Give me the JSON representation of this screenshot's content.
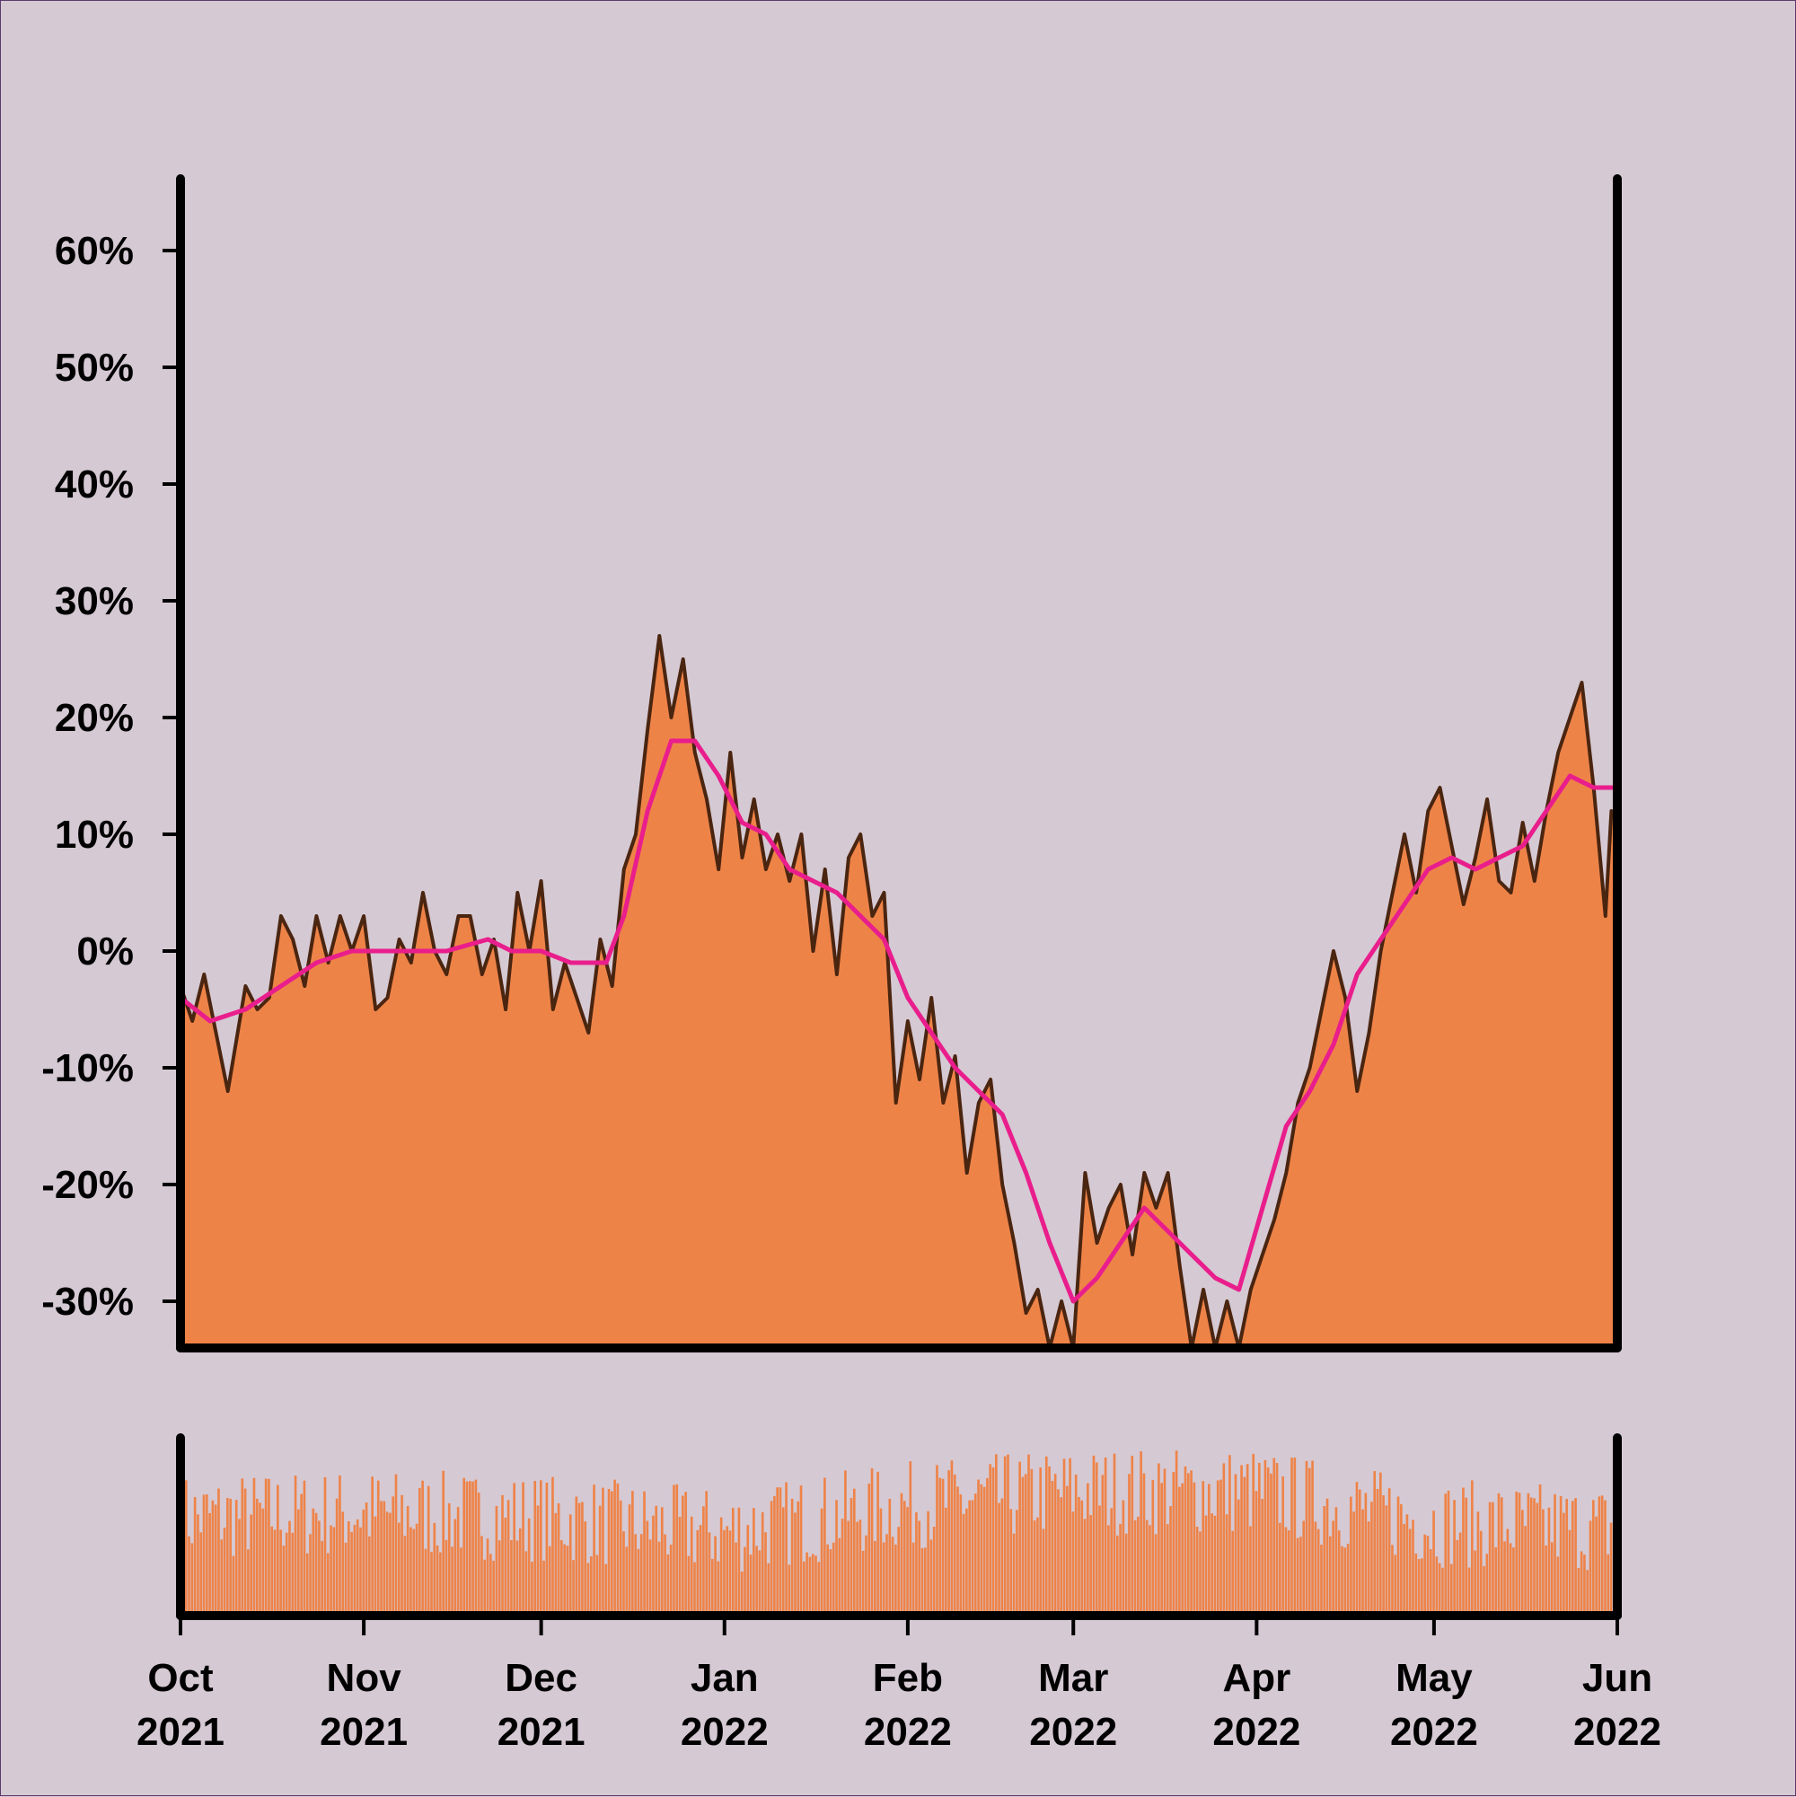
{
  "chart_data": [
    {
      "type": "area",
      "title": "",
      "xlabel": "",
      "ylabel": "",
      "x_domain": [
        "2021-10-01",
        "2022-06-01"
      ],
      "ylim": [
        -0.34,
        0.66
      ],
      "yticks": [
        {
          "value": 0.6,
          "label": "60%"
        },
        {
          "value": 0.5,
          "label": "50%"
        },
        {
          "value": 0.4,
          "label": "40%"
        },
        {
          "value": 0.3,
          "label": "30%"
        },
        {
          "value": 0.2,
          "label": "20%"
        },
        {
          "value": 0.1,
          "label": "10%"
        },
        {
          "value": 0.0,
          "label": "0%"
        },
        {
          "value": -0.1,
          "label": "-10%"
        },
        {
          "value": -0.2,
          "label": "-20%"
        },
        {
          "value": -0.3,
          "label": "-30%"
        }
      ],
      "grid": false,
      "series": [
        {
          "kind": "area",
          "fill_color": "#ee8348",
          "line_color": "#4a2510",
          "points": [
            [
              "2021-10-01",
              -0.03
            ],
            [
              "2021-10-03",
              -0.06
            ],
            [
              "2021-10-05",
              -0.02
            ],
            [
              "2021-10-07",
              -0.07
            ],
            [
              "2021-10-09",
              -0.12
            ],
            [
              "2021-10-12",
              -0.03
            ],
            [
              "2021-10-14",
              -0.05
            ],
            [
              "2021-10-16",
              -0.04
            ],
            [
              "2021-10-18",
              0.03
            ],
            [
              "2021-10-20",
              0.01
            ],
            [
              "2021-10-22",
              -0.03
            ],
            [
              "2021-10-24",
              0.03
            ],
            [
              "2021-10-26",
              -0.01
            ],
            [
              "2021-10-28",
              0.03
            ],
            [
              "2021-10-30",
              0.0
            ],
            [
              "2021-11-01",
              0.03
            ],
            [
              "2021-11-03",
              -0.05
            ],
            [
              "2021-11-05",
              -0.04
            ],
            [
              "2021-11-07",
              0.01
            ],
            [
              "2021-11-09",
              -0.01
            ],
            [
              "2021-11-11",
              0.05
            ],
            [
              "2021-11-13",
              0.0
            ],
            [
              "2021-11-15",
              -0.02
            ],
            [
              "2021-11-17",
              0.03
            ],
            [
              "2021-11-19",
              0.03
            ],
            [
              "2021-11-21",
              -0.02
            ],
            [
              "2021-11-23",
              0.01
            ],
            [
              "2021-11-25",
              -0.05
            ],
            [
              "2021-11-27",
              0.05
            ],
            [
              "2021-11-29",
              0.0
            ],
            [
              "2021-12-01",
              0.06
            ],
            [
              "2021-12-03",
              -0.05
            ],
            [
              "2021-12-05",
              -0.01
            ],
            [
              "2021-12-07",
              -0.04
            ],
            [
              "2021-12-09",
              -0.07
            ],
            [
              "2021-12-11",
              0.01
            ],
            [
              "2021-12-13",
              -0.03
            ],
            [
              "2021-12-15",
              0.07
            ],
            [
              "2021-12-17",
              0.1
            ],
            [
              "2021-12-19",
              0.19
            ],
            [
              "2021-12-21",
              0.27
            ],
            [
              "2021-12-23",
              0.2
            ],
            [
              "2021-12-25",
              0.25
            ],
            [
              "2021-12-27",
              0.17
            ],
            [
              "2021-12-29",
              0.13
            ],
            [
              "2021-12-31",
              0.07
            ],
            [
              "2022-01-02",
              0.17
            ],
            [
              "2022-01-04",
              0.08
            ],
            [
              "2022-01-06",
              0.13
            ],
            [
              "2022-01-08",
              0.07
            ],
            [
              "2022-01-10",
              0.1
            ],
            [
              "2022-01-12",
              0.06
            ],
            [
              "2022-01-14",
              0.1
            ],
            [
              "2022-01-16",
              0.0
            ],
            [
              "2022-01-18",
              0.07
            ],
            [
              "2022-01-20",
              -0.02
            ],
            [
              "2022-01-22",
              0.08
            ],
            [
              "2022-01-24",
              0.1
            ],
            [
              "2022-01-26",
              0.03
            ],
            [
              "2022-01-28",
              0.05
            ],
            [
              "2022-01-30",
              -0.13
            ],
            [
              "2022-02-01",
              -0.06
            ],
            [
              "2022-02-03",
              -0.11
            ],
            [
              "2022-02-05",
              -0.04
            ],
            [
              "2022-02-07",
              -0.13
            ],
            [
              "2022-02-09",
              -0.09
            ],
            [
              "2022-02-11",
              -0.19
            ],
            [
              "2022-02-13",
              -0.13
            ],
            [
              "2022-02-15",
              -0.11
            ],
            [
              "2022-02-17",
              -0.2
            ],
            [
              "2022-02-19",
              -0.25
            ],
            [
              "2022-02-21",
              -0.31
            ],
            [
              "2022-02-23",
              -0.29
            ],
            [
              "2022-02-25",
              -0.34
            ],
            [
              "2022-02-27",
              -0.3
            ],
            [
              "2022-03-01",
              -0.34
            ],
            [
              "2022-03-03",
              -0.19
            ],
            [
              "2022-03-05",
              -0.25
            ],
            [
              "2022-03-07",
              -0.22
            ],
            [
              "2022-03-09",
              -0.2
            ],
            [
              "2022-03-11",
              -0.26
            ],
            [
              "2022-03-13",
              -0.19
            ],
            [
              "2022-03-15",
              -0.22
            ],
            [
              "2022-03-17",
              -0.19
            ],
            [
              "2022-03-19",
              -0.27
            ],
            [
              "2022-03-21",
              -0.34
            ],
            [
              "2022-03-23",
              -0.29
            ],
            [
              "2022-03-25",
              -0.34
            ],
            [
              "2022-03-27",
              -0.3
            ],
            [
              "2022-03-29",
              -0.34
            ],
            [
              "2022-03-31",
              -0.29
            ],
            [
              "2022-04-02",
              -0.26
            ],
            [
              "2022-04-04",
              -0.23
            ],
            [
              "2022-04-06",
              -0.19
            ],
            [
              "2022-04-08",
              -0.13
            ],
            [
              "2022-04-10",
              -0.1
            ],
            [
              "2022-04-12",
              -0.05
            ],
            [
              "2022-04-14",
              0.0
            ],
            [
              "2022-04-16",
              -0.04
            ],
            [
              "2022-04-18",
              -0.12
            ],
            [
              "2022-04-20",
              -0.07
            ],
            [
              "2022-04-22",
              0.0
            ],
            [
              "2022-04-24",
              0.05
            ],
            [
              "2022-04-26",
              0.1
            ],
            [
              "2022-04-28",
              0.05
            ],
            [
              "2022-04-30",
              0.12
            ],
            [
              "2022-05-02",
              0.14
            ],
            [
              "2022-05-04",
              0.09
            ],
            [
              "2022-05-06",
              0.04
            ],
            [
              "2022-05-08",
              0.08
            ],
            [
              "2022-05-10",
              0.13
            ],
            [
              "2022-05-12",
              0.06
            ],
            [
              "2022-05-14",
              0.05
            ],
            [
              "2022-05-16",
              0.11
            ],
            [
              "2022-05-18",
              0.06
            ],
            [
              "2022-05-20",
              0.12
            ],
            [
              "2022-05-22",
              0.17
            ],
            [
              "2022-05-24",
              0.2
            ],
            [
              "2022-05-26",
              0.23
            ],
            [
              "2022-05-28",
              0.14
            ],
            [
              "2022-05-30",
              0.03
            ],
            [
              "2022-05-31",
              0.12
            ],
            [
              "2022-06-01",
              0.11
            ]
          ]
        },
        {
          "kind": "line",
          "line_color": "#e91e8c",
          "points": [
            [
              "2021-10-01",
              -0.04
            ],
            [
              "2021-10-06",
              -0.06
            ],
            [
              "2021-10-12",
              -0.05
            ],
            [
              "2021-10-18",
              -0.03
            ],
            [
              "2021-10-24",
              -0.01
            ],
            [
              "2021-10-30",
              0.0
            ],
            [
              "2021-11-05",
              0.0
            ],
            [
              "2021-11-15",
              0.0
            ],
            [
              "2021-11-22",
              0.01
            ],
            [
              "2021-11-26",
              0.0
            ],
            [
              "2021-12-01",
              0.0
            ],
            [
              "2021-12-06",
              -0.01
            ],
            [
              "2021-12-12",
              -0.01
            ],
            [
              "2021-12-15",
              0.03
            ],
            [
              "2021-12-19",
              0.12
            ],
            [
              "2021-12-23",
              0.18
            ],
            [
              "2021-12-27",
              0.18
            ],
            [
              "2021-12-31",
              0.15
            ],
            [
              "2022-01-04",
              0.11
            ],
            [
              "2022-01-08",
              0.1
            ],
            [
              "2022-01-12",
              0.07
            ],
            [
              "2022-01-16",
              0.06
            ],
            [
              "2022-01-20",
              0.05
            ],
            [
              "2022-01-24",
              0.03
            ],
            [
              "2022-01-28",
              0.01
            ],
            [
              "2022-02-01",
              -0.04
            ],
            [
              "2022-02-05",
              -0.07
            ],
            [
              "2022-02-09",
              -0.1
            ],
            [
              "2022-02-13",
              -0.12
            ],
            [
              "2022-02-17",
              -0.14
            ],
            [
              "2022-02-21",
              -0.19
            ],
            [
              "2022-02-25",
              -0.25
            ],
            [
              "2022-03-01",
              -0.3
            ],
            [
              "2022-03-05",
              -0.28
            ],
            [
              "2022-03-09",
              -0.25
            ],
            [
              "2022-03-13",
              -0.22
            ],
            [
              "2022-03-17",
              -0.24
            ],
            [
              "2022-03-21",
              -0.26
            ],
            [
              "2022-03-25",
              -0.28
            ],
            [
              "2022-03-29",
              -0.29
            ],
            [
              "2022-04-02",
              -0.22
            ],
            [
              "2022-04-06",
              -0.15
            ],
            [
              "2022-04-10",
              -0.12
            ],
            [
              "2022-04-14",
              -0.08
            ],
            [
              "2022-04-18",
              -0.02
            ],
            [
              "2022-04-22",
              0.01
            ],
            [
              "2022-04-26",
              0.04
            ],
            [
              "2022-04-30",
              0.07
            ],
            [
              "2022-05-04",
              0.08
            ],
            [
              "2022-05-08",
              0.07
            ],
            [
              "2022-05-12",
              0.08
            ],
            [
              "2022-05-16",
              0.09
            ],
            [
              "2022-05-20",
              0.12
            ],
            [
              "2022-05-24",
              0.15
            ],
            [
              "2022-05-28",
              0.14
            ],
            [
              "2022-06-01",
              0.14
            ]
          ]
        }
      ]
    },
    {
      "type": "bar",
      "title": "",
      "xlabel": "",
      "ylabel": "",
      "x_domain": [
        "2021-10-01",
        "2022-06-01"
      ],
      "ylim": [
        0,
        1
      ],
      "bar_color": "#ee8348",
      "volume_profile": [
        [
          "2021-10-01",
          0.55
        ],
        [
          "2021-11-01",
          0.58
        ],
        [
          "2021-12-01",
          0.55
        ],
        [
          "2022-01-01",
          0.47
        ],
        [
          "2022-02-01",
          0.62
        ],
        [
          "2022-03-01",
          0.7
        ],
        [
          "2022-04-01",
          0.7
        ],
        [
          "2022-05-01",
          0.52
        ],
        [
          "2022-06-01",
          0.49
        ]
      ],
      "xticks": [
        {
          "date": "2021-10-01",
          "month": "Oct",
          "year": "2021"
        },
        {
          "date": "2021-11-01",
          "month": "Nov",
          "year": "2021"
        },
        {
          "date": "2021-12-01",
          "month": "Dec",
          "year": "2021"
        },
        {
          "date": "2022-01-01",
          "month": "Jan",
          "year": "2022"
        },
        {
          "date": "2022-02-01",
          "month": "Feb",
          "year": "2022"
        },
        {
          "date": "2022-03-01",
          "month": "Mar",
          "year": "2022"
        },
        {
          "date": "2022-04-01",
          "month": "Apr",
          "year": "2022"
        },
        {
          "date": "2022-05-01",
          "month": "May",
          "year": "2022"
        },
        {
          "date": "2022-06-01",
          "month": "Jun",
          "year": "2022"
        }
      ]
    }
  ],
  "colors": {
    "background": "#d5c9d3",
    "axis": "#000000"
  }
}
